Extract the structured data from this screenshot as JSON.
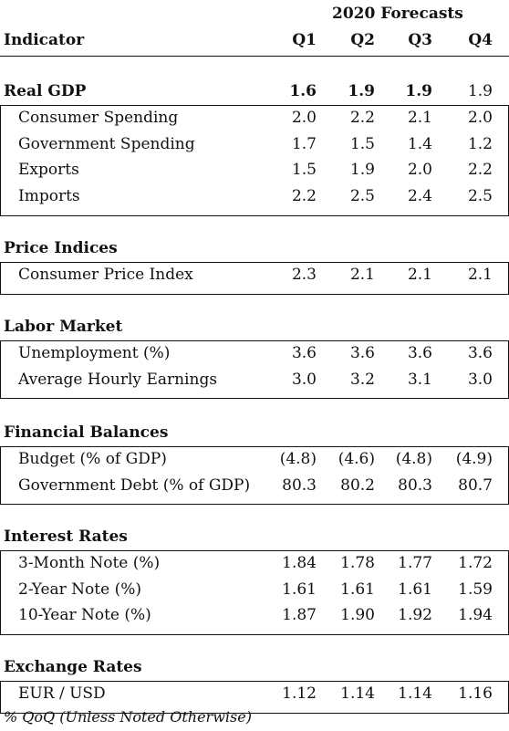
{
  "header": {
    "group_label": "2020 Forecasts",
    "indicator_label": "Indicator",
    "quarters": [
      "Q1",
      "Q2",
      "Q3",
      "Q4"
    ]
  },
  "sections": [
    {
      "title": "Real GDP",
      "values": [
        "1.6",
        "1.9",
        "1.9",
        "1.9"
      ],
      "bold_values": [
        true,
        true,
        true,
        false
      ],
      "rows": [
        {
          "label": "Consumer Spending",
          "values": [
            "2.0",
            "2.2",
            "2.1",
            "2.0"
          ]
        },
        {
          "label": "Government Spending",
          "values": [
            "1.7",
            "1.5",
            "1.4",
            "1.2"
          ]
        },
        {
          "label": "Exports",
          "values": [
            "1.5",
            "1.9",
            "2.0",
            "2.2"
          ]
        },
        {
          "label": "Imports",
          "values": [
            "2.2",
            "2.5",
            "2.4",
            "2.5"
          ]
        }
      ]
    },
    {
      "title": "Price Indices",
      "rows": [
        {
          "label": "Consumer Price Index",
          "values": [
            "2.3",
            "2.1",
            "2.1",
            "2.1"
          ]
        }
      ]
    },
    {
      "title": "Labor Market",
      "rows": [
        {
          "label": "Unemployment (%)",
          "values": [
            "3.6",
            "3.6",
            "3.6",
            "3.6"
          ]
        },
        {
          "label": "Average Hourly Earnings",
          "values": [
            "3.0",
            "3.2",
            "3.1",
            "3.0"
          ]
        }
      ]
    },
    {
      "title": "Financial Balances",
      "rows": [
        {
          "label": "Budget (% of GDP)",
          "values": [
            "(4.8)",
            "(4.6)",
            "(4.8)",
            "(4.9)"
          ]
        },
        {
          "label": "Government Debt (% of GDP)",
          "values": [
            "80.3",
            "80.2",
            "80.3",
            "80.7"
          ]
        }
      ]
    },
    {
      "title": "Interest Rates",
      "rows": [
        {
          "label": "3-Month Note (%)",
          "values": [
            "1.84",
            "1.78",
            "1.77",
            "1.72"
          ]
        },
        {
          "label": "2-Year Note (%)",
          "values": [
            "1.61",
            "1.61",
            "1.61",
            "1.59"
          ]
        },
        {
          "label": "10-Year Note (%)",
          "values": [
            "1.87",
            "1.90",
            "1.92",
            "1.94"
          ]
        }
      ]
    },
    {
      "title": "Exchange Rates",
      "rows": [
        {
          "label": "EUR / USD",
          "values": [
            "1.12",
            "1.14",
            "1.14",
            "1.16"
          ]
        }
      ]
    }
  ],
  "footnote": "% QoQ (Unless Noted Otherwise)"
}
